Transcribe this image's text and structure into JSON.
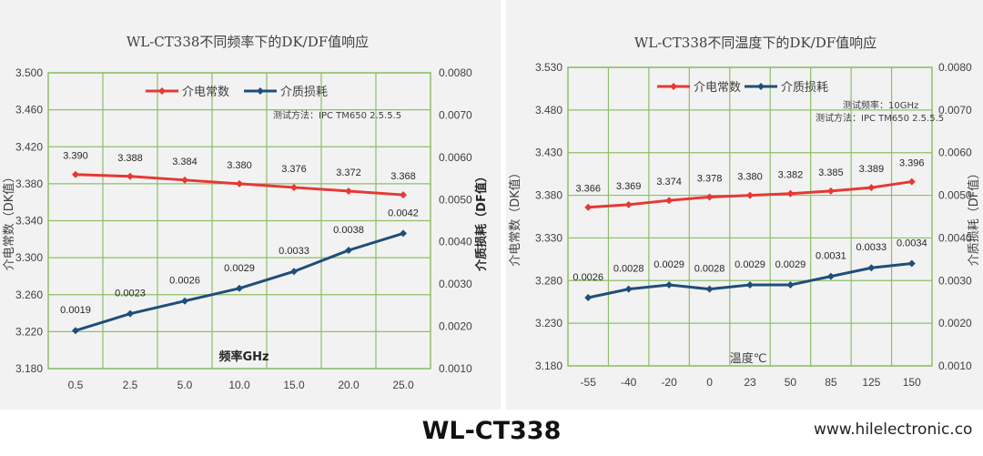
{
  "model_label": "WL-CT338",
  "website": "www.hilelectronic.co",
  "colors": {
    "dk_series": "#e53935",
    "df_series": "#1f4e79",
    "grid": "#8fbe6a",
    "panel_bg": "#f2f2f2"
  },
  "chart_data": [
    {
      "type": "line",
      "title": "WL-CT338不同频率下的DK/DF值响应",
      "xlabel": "频率GHz",
      "ylabel": "介电常数（DK值）",
      "y2label": "介质损耗（DF值）",
      "categories": [
        "0.5",
        "2.5",
        "5.0",
        "10.0",
        "15.0",
        "20.0",
        "25.0"
      ],
      "ylim": [
        3.18,
        3.5
      ],
      "yticks": [
        "3.180",
        "3.220",
        "3.260",
        "3.300",
        "3.340",
        "3.380",
        "3.420",
        "3.460",
        "3.500"
      ],
      "y2lim": [
        0.001,
        0.008
      ],
      "y2ticks": [
        "0.0010",
        "0.0020",
        "0.0030",
        "0.0040",
        "0.0050",
        "0.0060",
        "0.0070",
        "0.0080"
      ],
      "grid": true,
      "legend_position": "top",
      "note": [
        "测试方法：IPC TM650 2.5.5.5"
      ],
      "series": [
        {
          "name": "介电常数",
          "axis": "left",
          "color": "#e53935",
          "values": [
            3.39,
            3.388,
            3.384,
            3.38,
            3.376,
            3.372,
            3.368
          ],
          "labels": [
            "3.390",
            "3.388",
            "3.384",
            "3.380",
            "3.376",
            "3.372",
            "3.368"
          ]
        },
        {
          "name": "介质损耗",
          "axis": "right",
          "color": "#1f4e79",
          "values": [
            0.0019,
            0.0023,
            0.0026,
            0.0029,
            0.0033,
            0.0038,
            0.0042
          ],
          "labels": [
            "0.0019",
            "0.0023",
            "0.0026",
            "0.0029",
            "0.0033",
            "0.0038",
            "0.0042"
          ]
        }
      ]
    },
    {
      "type": "line",
      "title": "WL-CT338不同温度下的DK/DF值响应",
      "xlabel": "温度℃",
      "ylabel": "介电常数（DK值）",
      "y2label": "介质损耗（DF值）",
      "categories": [
        "-55",
        "-40",
        "-20",
        "0",
        "23",
        "50",
        "85",
        "125",
        "150"
      ],
      "ylim": [
        3.18,
        3.53
      ],
      "yticks": [
        "3.180",
        "3.230",
        "3.280",
        "3.330",
        "3.380",
        "3.430",
        "3.480",
        "3.530"
      ],
      "y2lim": [
        0.001,
        0.008
      ],
      "y2ticks": [
        "0.0010",
        "0.0020",
        "0.0030",
        "0.0040",
        "0.0050",
        "0.0060",
        "0.0070",
        "0.0080"
      ],
      "grid": true,
      "legend_position": "top",
      "note": [
        "测试频率：10GHz",
        "测试方法：IPC TM650  2.5.5.5"
      ],
      "series": [
        {
          "name": "介电常数",
          "axis": "left",
          "color": "#e53935",
          "values": [
            3.366,
            3.369,
            3.374,
            3.378,
            3.38,
            3.382,
            3.385,
            3.389,
            3.396
          ],
          "labels": [
            "3.366",
            "3.369",
            "3.374",
            "3.378",
            "3.380",
            "3.382",
            "3.385",
            "3.389",
            "3.396"
          ]
        },
        {
          "name": "介质损耗",
          "axis": "right",
          "color": "#1f4e79",
          "values": [
            0.0026,
            0.0028,
            0.0029,
            0.0028,
            0.0029,
            0.0029,
            0.0031,
            0.0033,
            0.0034
          ],
          "labels": [
            "0.0026",
            "0.0028",
            "0.0029",
            "0.0028",
            "0.0029",
            "0.0029",
            "0.0031",
            "0.0033",
            "0.0034"
          ]
        }
      ]
    }
  ]
}
